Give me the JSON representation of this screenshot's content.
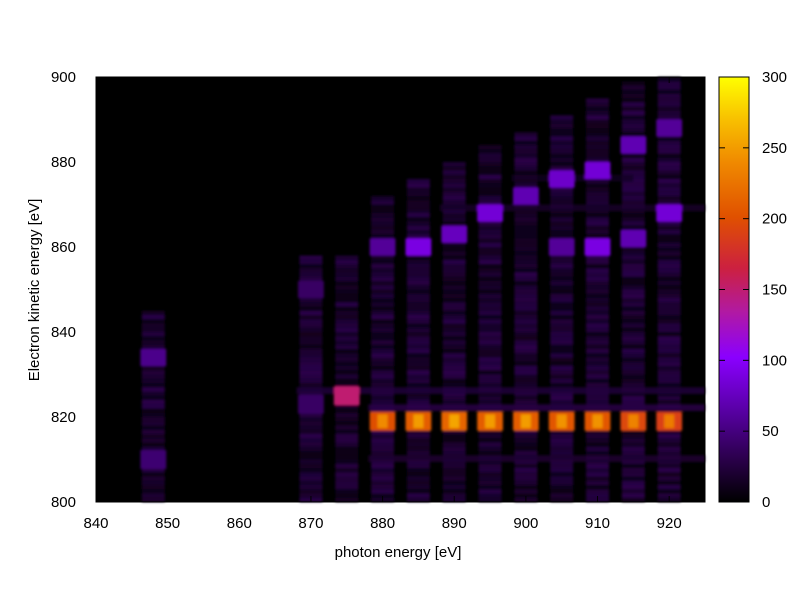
{
  "chart_data": {
    "type": "heatmap",
    "title": "",
    "xlabel": "photon energy [eV]",
    "ylabel": "Electron kinetic energy [eV]",
    "xlim": [
      840,
      925
    ],
    "ylim": [
      800,
      900
    ],
    "xticks": [
      "840",
      "850",
      "860",
      "870",
      "880",
      "890",
      "900",
      "910",
      "920"
    ],
    "yticks": [
      "800",
      "820",
      "840",
      "860",
      "880",
      "900"
    ],
    "colorbar": {
      "range": [
        0,
        300
      ],
      "ticks": [
        "0",
        "50",
        "100",
        "150",
        "200",
        "250",
        "300"
      ],
      "palette": [
        "#000000",
        "#3c007a",
        "#7a00d9",
        "#a020b0",
        "#c0303a",
        "#e06000",
        "#f5a800",
        "#ffff00"
      ]
    },
    "grid": false,
    "columns_photon_energy": [
      848,
      870,
      875,
      880,
      885,
      890,
      895,
      900,
      905,
      910,
      915,
      920
    ],
    "features": [
      {
        "photon_energy": 848,
        "kinetic_energy": 810,
        "intensity": 45
      },
      {
        "photon_energy": 848,
        "kinetic_energy": 834,
        "intensity": 55
      },
      {
        "photon_energy": 870,
        "kinetic_energy": 823,
        "intensity": 40
      },
      {
        "photon_energy": 870,
        "kinetic_energy": 850,
        "intensity": 40
      },
      {
        "photon_energy": 875,
        "kinetic_energy": 825,
        "intensity": 150
      },
      {
        "photon_energy": 880,
        "kinetic_energy": 819,
        "intensity": 200
      },
      {
        "photon_energy": 885,
        "kinetic_energy": 819,
        "intensity": 210
      },
      {
        "photon_energy": 890,
        "kinetic_energy": 819,
        "intensity": 215
      },
      {
        "photon_energy": 895,
        "kinetic_energy": 819,
        "intensity": 210
      },
      {
        "photon_energy": 900,
        "kinetic_energy": 819,
        "intensity": 210
      },
      {
        "photon_energy": 905,
        "kinetic_energy": 819,
        "intensity": 205
      },
      {
        "photon_energy": 910,
        "kinetic_energy": 819,
        "intensity": 205
      },
      {
        "photon_energy": 915,
        "kinetic_energy": 819,
        "intensity": 195
      },
      {
        "photon_energy": 920,
        "kinetic_energy": 819,
        "intensity": 190
      },
      {
        "photon_energy": 880,
        "kinetic_energy": 860,
        "intensity": 60
      },
      {
        "photon_energy": 885,
        "kinetic_energy": 860,
        "intensity": 90
      },
      {
        "photon_energy": 890,
        "kinetic_energy": 863,
        "intensity": 75
      },
      {
        "photon_energy": 895,
        "kinetic_energy": 868,
        "intensity": 85
      },
      {
        "photon_energy": 900,
        "kinetic_energy": 872,
        "intensity": 70
      },
      {
        "photon_energy": 905,
        "kinetic_energy": 876,
        "intensity": 80
      },
      {
        "photon_energy": 910,
        "kinetic_energy": 878,
        "intensity": 85
      },
      {
        "photon_energy": 915,
        "kinetic_energy": 884,
        "intensity": 70
      },
      {
        "photon_energy": 920,
        "kinetic_energy": 888,
        "intensity": 60
      },
      {
        "photon_energy": 905,
        "kinetic_energy": 860,
        "intensity": 60
      },
      {
        "photon_energy": 910,
        "kinetic_energy": 860,
        "intensity": 90
      },
      {
        "photon_energy": 915,
        "kinetic_energy": 862,
        "intensity": 70
      },
      {
        "photon_energy": 920,
        "kinetic_energy": 868,
        "intensity": 85
      }
    ]
  }
}
